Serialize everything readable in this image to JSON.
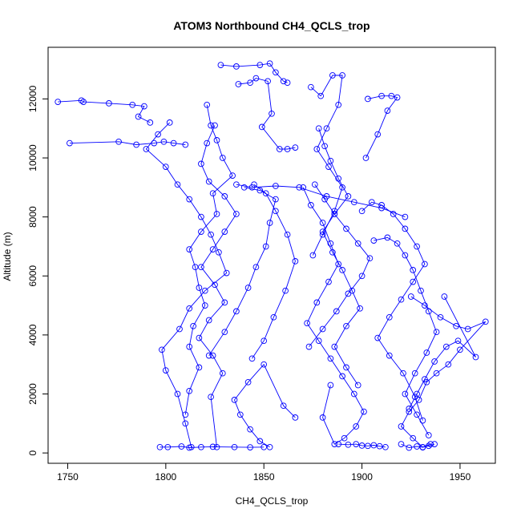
{
  "chart_data": {
    "type": "line",
    "title": "ATOM3 Northbound CH4_QCLS_trop",
    "xlabel": "CH4_QCLS_trop",
    "ylabel": "Altitude (m)",
    "xlim": [
      1740,
      1968
    ],
    "ylim": [
      -350,
      13750
    ],
    "xticks": [
      1750,
      1800,
      1850,
      1900,
      1950
    ],
    "yticks": [
      0,
      2000,
      4000,
      6000,
      8000,
      10000,
      12000
    ],
    "grid": false,
    "legend": "none",
    "series_color": "#0000ff",
    "series": [
      {
        "x": [
          1745,
          1757,
          1758,
          1771,
          1783,
          1789,
          1786,
          1792
        ],
        "y": [
          11900,
          11950,
          11900,
          11850,
          11800,
          11750,
          11400,
          11200
        ]
      },
      {
        "x": [
          1751,
          1776,
          1785,
          1794,
          1799,
          1804,
          1810
        ],
        "y": [
          10500,
          10550,
          10450,
          10500,
          10550,
          10500,
          10450
        ]
      },
      {
        "x": [
          1802,
          1796,
          1790,
          1800,
          1806,
          1812,
          1818,
          1823,
          1827,
          1831,
          1820,
          1812,
          1807,
          1798,
          1800,
          1806,
          1810,
          1813
        ],
        "y": [
          11200,
          10800,
          10300,
          9700,
          9100,
          8600,
          8000,
          7400,
          6800,
          6100,
          5500,
          4900,
          4200,
          3500,
          2800,
          2000,
          1000,
          200
        ]
      },
      {
        "x": [
          1821,
          1823,
          1826,
          1829,
          1834,
          1824,
          1826,
          1818,
          1812,
          1815,
          1817,
          1820,
          1814,
          1812,
          1817,
          1812,
          1810
        ],
        "y": [
          11800,
          11100,
          10600,
          10000,
          9400,
          8800,
          8100,
          7500,
          6900,
          6300,
          5600,
          5000,
          4300,
          3600,
          2900,
          2100,
          1300
        ]
      },
      {
        "x": [
          1825,
          1821,
          1818,
          1822,
          1830,
          1836,
          1830,
          1824,
          1818,
          1825,
          1830,
          1822,
          1817,
          1824,
          1829,
          1823,
          1826
        ],
        "y": [
          11100,
          10500,
          9800,
          9200,
          8700,
          8100,
          7500,
          6900,
          6300,
          5700,
          5100,
          4500,
          3900,
          3300,
          2700,
          1900,
          200
        ]
      },
      {
        "x": [
          1828,
          1836,
          1848,
          1853,
          1856,
          1860,
          1862
        ],
        "y": [
          13150,
          13100,
          13150,
          13200,
          12900,
          12600,
          12550
        ]
      },
      {
        "x": [
          1837,
          1843,
          1846,
          1852,
          1854,
          1849,
          1858,
          1862,
          1866
        ],
        "y": [
          12500,
          12550,
          12700,
          12600,
          11500,
          11050,
          10300,
          10300,
          10350
        ]
      },
      {
        "x": [
          1840,
          1848,
          1856,
          1853,
          1851,
          1846,
          1842,
          1836,
          1830,
          1822
        ],
        "y": [
          9000,
          8900,
          8600,
          7800,
          7000,
          6300,
          5600,
          4800,
          4100,
          3300
        ]
      },
      {
        "x": [
          1844,
          1850,
          1855,
          1861,
          1866,
          1862,
          1856,
          1851,
          1845
        ],
        "y": [
          3200,
          3800,
          4600,
          5500,
          6500,
          7400,
          8200,
          8800,
          9100
        ]
      },
      {
        "x": [
          1853,
          1848,
          1843,
          1838,
          1835,
          1842,
          1850,
          1860,
          1866
        ],
        "y": [
          200,
          400,
          800,
          1300,
          1800,
          2400,
          3000,
          1600,
          1200
        ]
      },
      {
        "x": [
          1874,
          1879,
          1885,
          1890,
          1888,
          1882,
          1877,
          1883,
          1890,
          1886,
          1880,
          1875
        ],
        "y": [
          12400,
          12100,
          12800,
          12800,
          11800,
          11000,
          10300,
          9700,
          9000,
          8200,
          7400,
          6700
        ]
      },
      {
        "x": [
          1878,
          1881,
          1884,
          1888,
          1893,
          1886,
          1880,
          1885,
          1890,
          1895,
          1899,
          1892,
          1886,
          1892,
          1898
        ],
        "y": [
          11000,
          10400,
          9900,
          9300,
          8700,
          8100,
          7500,
          6800,
          6200,
          5500,
          4900,
          4300,
          3600,
          2900,
          2300
        ]
      },
      {
        "x": [
          1870,
          1874,
          1880,
          1884,
          1888,
          1883,
          1877,
          1872,
          1878,
          1884,
          1890,
          1896,
          1901,
          1897,
          1891,
          1886,
          1880,
          1884
        ],
        "y": [
          9000,
          8400,
          7800,
          7100,
          6400,
          5800,
          5100,
          4400,
          3800,
          3200,
          2600,
          2000,
          1400,
          900,
          500,
          300,
          1200,
          2300
        ]
      },
      {
        "x": [
          1903,
          1910,
          1915,
          1918,
          1913,
          1908,
          1902
        ],
        "y": [
          12000,
          12100,
          12100,
          12050,
          11600,
          10800,
          10000
        ]
      },
      {
        "x": [
          1900,
          1905,
          1910,
          1916,
          1922,
          1928,
          1932,
          1926,
          1920,
          1914,
          1908,
          1914,
          1921,
          1927,
          1931
        ],
        "y": [
          8200,
          8500,
          8400,
          8100,
          7600,
          7000,
          6400,
          5800,
          5200,
          4600,
          3900,
          3300,
          2700,
          1900,
          1100
        ]
      },
      {
        "x": [
          1906,
          1913,
          1918,
          1922,
          1926,
          1930,
          1934,
          1938,
          1933,
          1927,
          1922,
          1928,
          1934
        ],
        "y": [
          7200,
          7300,
          7100,
          6700,
          6200,
          5500,
          4800,
          4100,
          3400,
          2700,
          2000,
          1300,
          600
        ]
      },
      {
        "x": [
          1925,
          1932,
          1940,
          1948,
          1954,
          1963,
          1950,
          1944,
          1938,
          1933,
          1929,
          1924,
          1920,
          1926,
          1931,
          1935
        ],
        "y": [
          5300,
          5000,
          4600,
          4300,
          4200,
          4450,
          3500,
          3000,
          2700,
          2400,
          1800,
          1400,
          900,
          500,
          200,
          300
        ]
      },
      {
        "x": [
          1942,
          1958,
          1949,
          1943,
          1937,
          1932,
          1928,
          1924
        ],
        "y": [
          5300,
          3250,
          3800,
          3600,
          3100,
          2500,
          2000,
          1500
        ]
      },
      {
        "x": [
          1888,
          1893,
          1897,
          1900,
          1903,
          1906,
          1909,
          1912
        ],
        "y": [
          300,
          280,
          300,
          250,
          240,
          260,
          230,
          200
        ]
      },
      {
        "x": [
          1920,
          1924,
          1928,
          1931,
          1934,
          1937
        ],
        "y": [
          300,
          180,
          220,
          190,
          240,
          300
        ]
      },
      {
        "x": [
          1797,
          1801,
          1808,
          1812,
          1818,
          1824,
          1835,
          1843,
          1850
        ],
        "y": [
          200,
          200,
          220,
          180,
          200,
          210,
          200,
          190,
          200
        ]
      },
      {
        "x": [
          1836,
          1844,
          1856,
          1868,
          1882,
          1896,
          1910,
          1922
        ],
        "y": [
          9100,
          9000,
          9050,
          9000,
          8700,
          8500,
          8300,
          8000
        ]
      },
      {
        "x": [
          1873,
          1880,
          1887,
          1893,
          1900,
          1904,
          1898,
          1892,
          1886,
          1881,
          1876
        ],
        "y": [
          3600,
          4200,
          4800,
          5400,
          6000,
          6600,
          7100,
          7600,
          8100,
          8600,
          9100
        ]
      }
    ]
  }
}
